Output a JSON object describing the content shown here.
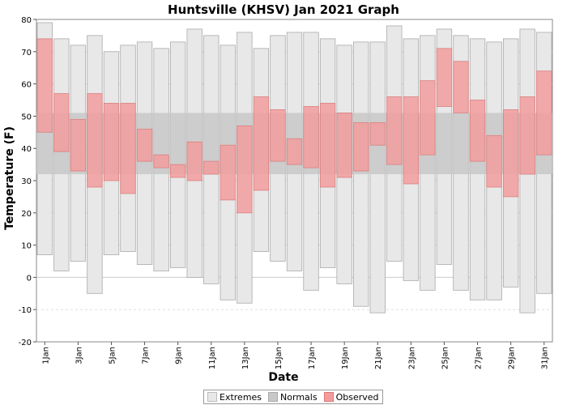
{
  "chart_data": {
    "type": "bar",
    "title": "Huntsville (KHSV) Jan 2021 Graph",
    "xlabel": "Date",
    "ylabel": "Temperature (F)",
    "ylim": [
      -20,
      80
    ],
    "yticks": [
      -20,
      -10,
      0,
      10,
      20,
      30,
      40,
      50,
      60,
      70,
      80
    ],
    "grid": true,
    "legend_position": "bottom",
    "categories": [
      "1Jan",
      "2Jan",
      "3Jan",
      "4Jan",
      "5Jan",
      "6Jan",
      "7Jan",
      "8Jan",
      "9Jan",
      "10Jan",
      "11Jan",
      "12Jan",
      "13Jan",
      "14Jan",
      "15Jan",
      "16Jan",
      "17Jan",
      "18Jan",
      "19Jan",
      "20Jan",
      "21Jan",
      "22Jan",
      "23Jan",
      "24Jan",
      "25Jan",
      "26Jan",
      "27Jan",
      "28Jan",
      "29Jan",
      "30Jan",
      "31Jan"
    ],
    "tick_labels": [
      "1Jan",
      "3Jan",
      "5Jan",
      "7Jan",
      "9Jan",
      "11Jan",
      "13Jan",
      "15Jan",
      "17Jan",
      "19Jan",
      "21Jan",
      "23Jan",
      "25Jan",
      "27Jan",
      "29Jan",
      "31Jan"
    ],
    "normals": {
      "low": 32,
      "high": 51
    },
    "series": [
      {
        "name": "Extremes",
        "color": "#e8e8e8",
        "high": [
          79,
          74,
          72,
          75,
          70,
          72,
          73,
          71,
          73,
          77,
          75,
          72,
          76,
          71,
          75,
          76,
          76,
          74,
          72,
          73,
          73,
          78,
          74,
          75,
          77,
          75,
          74,
          73,
          74,
          77,
          76
        ],
        "low": [
          7,
          2,
          5,
          -5,
          7,
          8,
          4,
          2,
          3,
          0,
          -2,
          -7,
          -8,
          8,
          5,
          2,
          -4,
          3,
          -2,
          -9,
          -11,
          5,
          -1,
          -4,
          4,
          -4,
          -7,
          -7,
          -3,
          -11,
          -5
        ]
      },
      {
        "name": "Normals",
        "color": "#c8c8c8"
      },
      {
        "name": "Observed",
        "color": "#f29c9c",
        "high": [
          74,
          57,
          49,
          57,
          54,
          54,
          46,
          38,
          35,
          42,
          36,
          41,
          47,
          56,
          52,
          43,
          53,
          54,
          51,
          48,
          48,
          56,
          56,
          61,
          71,
          67,
          55,
          44,
          52,
          56,
          64
        ],
        "low": [
          45,
          39,
          33,
          28,
          30,
          26,
          36,
          34,
          31,
          30,
          32,
          24,
          20,
          27,
          36,
          35,
          34,
          28,
          31,
          33,
          41,
          35,
          29,
          38,
          53,
          51,
          36,
          28,
          25,
          32,
          38
        ]
      }
    ]
  }
}
